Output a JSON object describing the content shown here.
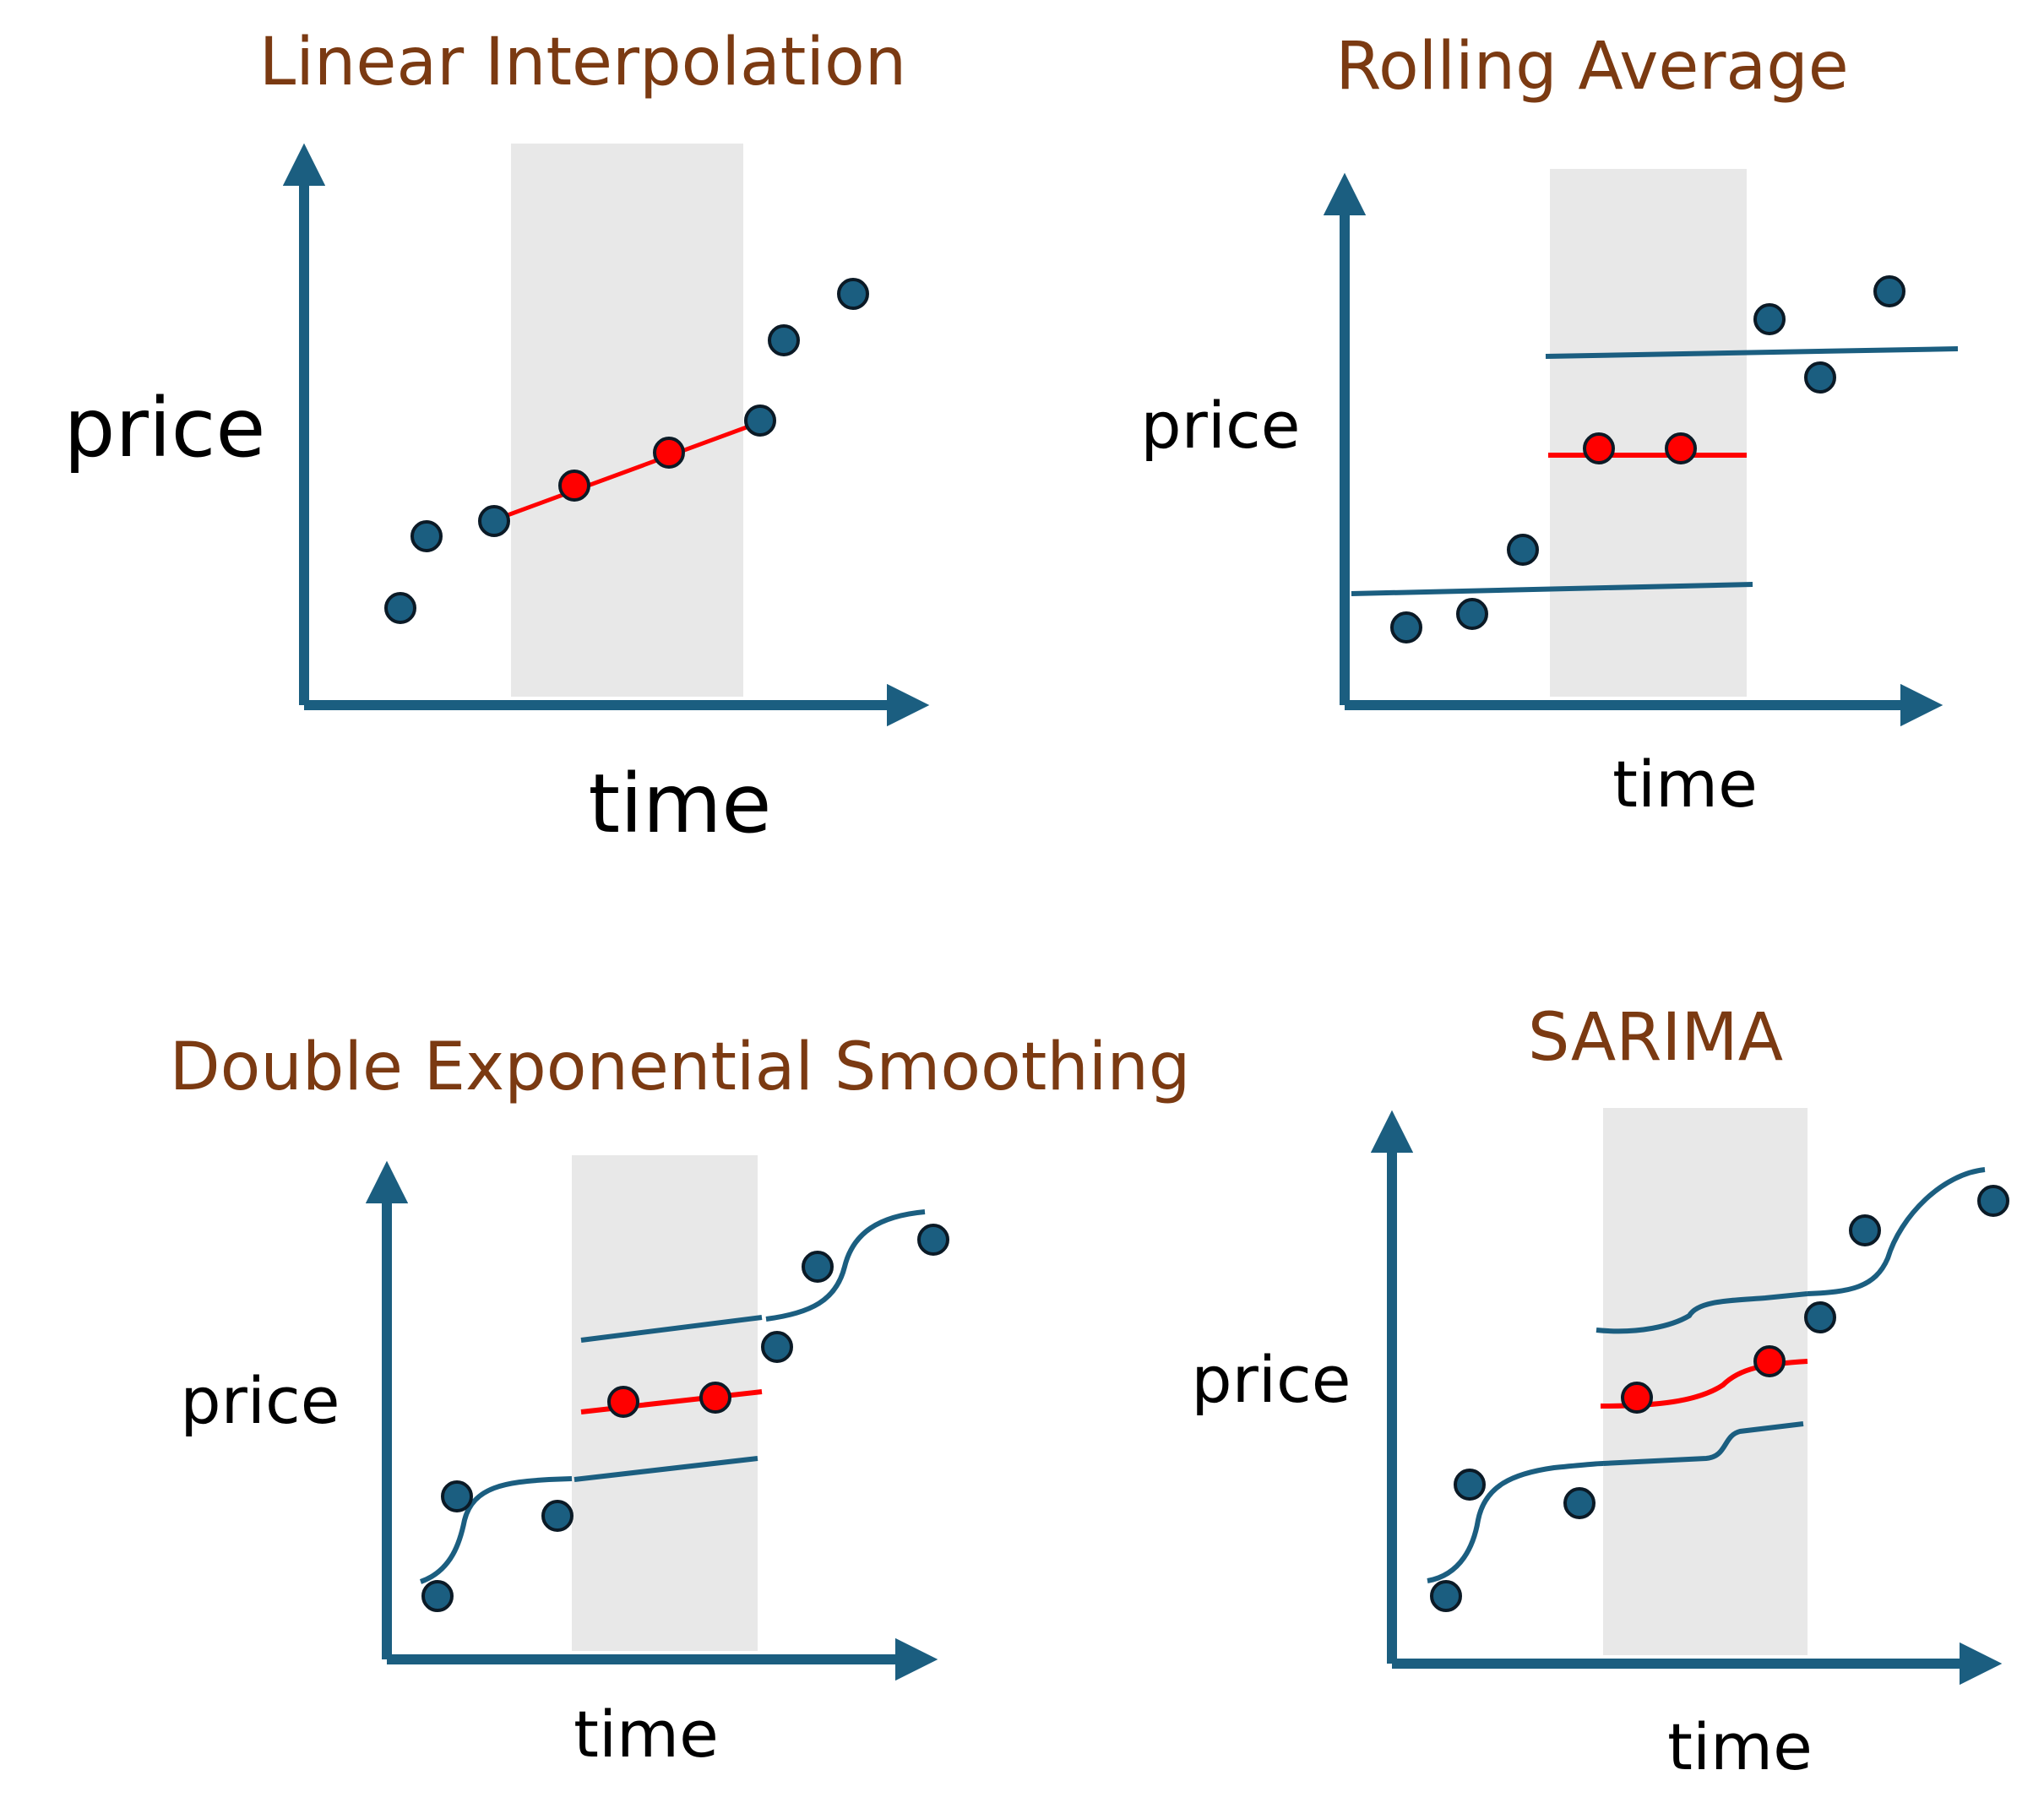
{
  "colors": {
    "axis": "#1b5e80",
    "observed_point": "#1b5e80",
    "imputed_point": "#ff0000",
    "imputed_line": "#ff0000",
    "fitted_line": "#1b5e80",
    "gap_band": "#e8e8e8",
    "title": "#7b3a12",
    "point_outline": "#0b1a26"
  },
  "panels": [
    {
      "id": "linear-interpolation",
      "title": "Linear Interpolation",
      "xlabel": "time",
      "ylabel": "price"
    },
    {
      "id": "rolling-average",
      "title": "Rolling Average",
      "xlabel": "time",
      "ylabel": "price"
    },
    {
      "id": "double-exponential-smoothing",
      "title": "Double Exponential Smoothing",
      "xlabel": "time",
      "ylabel": "price"
    },
    {
      "id": "sarima",
      "title": "SARIMA",
      "xlabel": "time",
      "ylabel": "price"
    }
  ]
}
